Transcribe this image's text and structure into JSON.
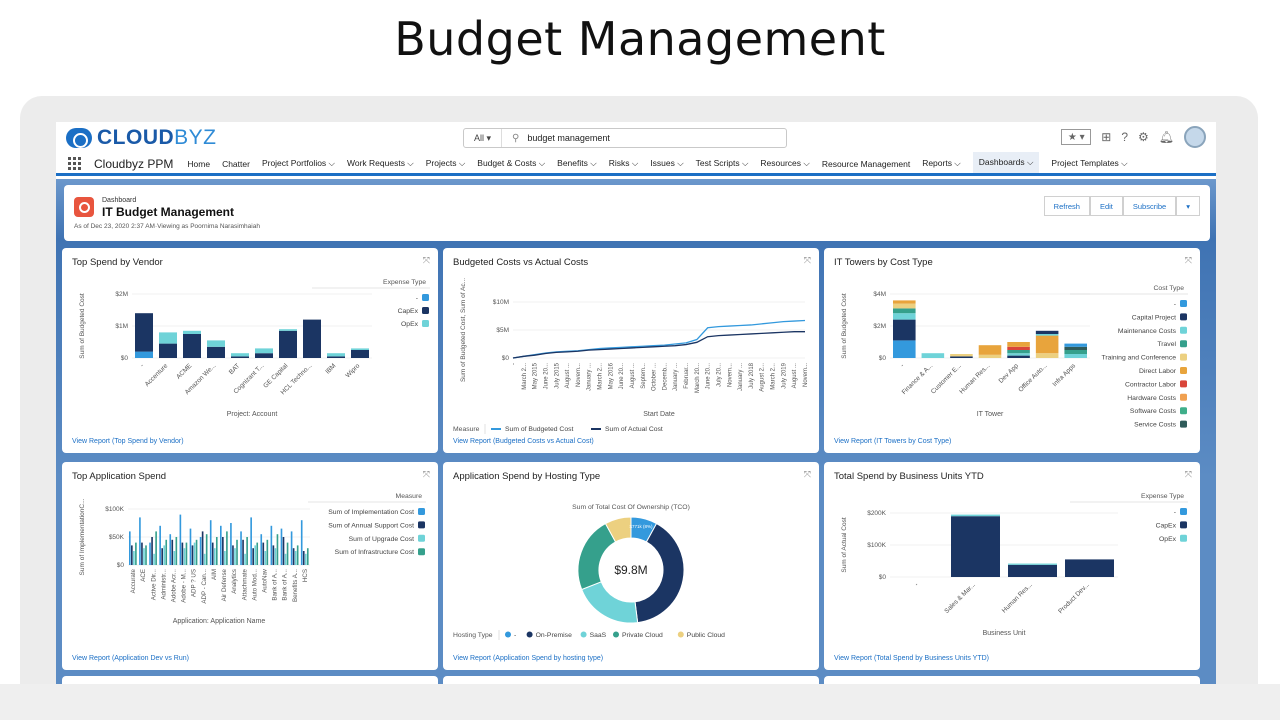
{
  "page": {
    "title": "Budget Management"
  },
  "header": {
    "brand_left": "CLOUD",
    "brand_right": "BYZ",
    "search_scope": "All",
    "search_value": "budget management"
  },
  "nav": {
    "app_name": "Cloudbyz PPM",
    "items": [
      "Home",
      "Chatter",
      "Project Portfolios ⌵",
      "Work Requests ⌵",
      "Projects ⌵",
      "Budget & Costs ⌵",
      "Benefits ⌵",
      "Risks ⌵",
      "Issues ⌵",
      "Test Scripts ⌵",
      "Resources ⌵",
      "Resource Management",
      "Reports ⌵",
      "Dashboards ⌵",
      "Project Templates ⌵"
    ],
    "active": "Dashboards ⌵"
  },
  "dashboard": {
    "type_label": "Dashboard",
    "title": "IT Budget Management",
    "as_of": "As of Dec 23, 2020 2:37 AM·Viewing as Poornima Narasimhaiah",
    "buttons": {
      "refresh": "Refresh",
      "edit": "Edit",
      "subscribe": "Subscribe"
    }
  },
  "colors": {
    "dash": "#3399dd",
    "capex": "#1b3563",
    "opex": "#6fd3d8",
    "accent": "#1b6fc5",
    "pc_teal": "#35a08c",
    "public_cloud": "#ecd080"
  },
  "panels": {
    "p1": {
      "title": "Top Spend by Vendor",
      "link": "View Report (Top Spend by Vendor)",
      "chart_data": {
        "type": "bar",
        "stacked": true,
        "ylabel": "Sum of Budgeted Cost",
        "xlabel": "Project: Account",
        "yticks": [
          "$2M",
          "$1M",
          "$0"
        ],
        "ylim": [
          0,
          2
        ],
        "categories": [
          "-",
          "Accenture",
          "ACME",
          "Amazon We...",
          "BAT",
          "Cognizant T...",
          "GE Capital",
          "HCL Techno...",
          "IBM",
          "Wipro"
        ],
        "legend_title": "Expense Type",
        "series": [
          {
            "name": "-",
            "color": "#3399dd",
            "values": [
              0.2,
              0,
              0,
              0,
              0,
              0,
              0,
              0,
              0,
              0
            ]
          },
          {
            "name": "CapEx",
            "color": "#1b3563",
            "values": [
              1.2,
              0.45,
              0.75,
              0.35,
              0.05,
              0.15,
              0.85,
              1.2,
              0.05,
              0.25
            ]
          },
          {
            "name": "OpEx",
            "color": "#6fd3d8",
            "values": [
              0,
              0.35,
              0.1,
              0.2,
              0.1,
              0.15,
              0.05,
              0,
              0.1,
              0.05
            ]
          }
        ]
      }
    },
    "p2": {
      "title": "Budgeted Costs vs Actual Costs",
      "link": "View Report (Budgeted Costs vs Actual Cost)",
      "chart_data": {
        "type": "line",
        "ylabel": "Sum of Budgeted Cost, Sum of Ac...",
        "xlabel": "Start Date",
        "yticks": [
          "$10M",
          "$5M",
          "$0"
        ],
        "ylim": [
          0,
          10
        ],
        "x": [
          "-",
          "March 2...",
          "May 2015",
          "June 20...",
          "July 2015",
          "August ...",
          "Novem...",
          "January ...",
          "March 2...",
          "May 2016",
          "June 20...",
          "August ...",
          "Septem...",
          "October ...",
          "Decemb...",
          "January ...",
          "Februar...",
          "March 20...",
          "June 20...",
          "July 20...",
          "Novem...",
          "January ...",
          "July 2018",
          "August 2...",
          "March 2...",
          "July 2019",
          "August ...",
          "Novem..."
        ],
        "legend_title": "Measure",
        "series": [
          {
            "name": "Sum of Budgeted Cost",
            "color": "#3399dd",
            "values": [
              0,
              0.3,
              0.6,
              0.9,
              1.1,
              1.2,
              1.3,
              1.5,
              1.7,
              1.8,
              1.9,
              2.0,
              2.1,
              2.2,
              2.3,
              2.5,
              2.7,
              3.3,
              5.4,
              5.6,
              5.7,
              5.8,
              5.9,
              6.1,
              6.3,
              6.5,
              6.6,
              6.7
            ]
          },
          {
            "name": "Sum of Actual Cost",
            "color": "#1b3563",
            "values": [
              0,
              0.3,
              0.5,
              0.8,
              1.0,
              1.1,
              1.2,
              1.4,
              1.5,
              1.6,
              1.7,
              1.8,
              1.9,
              2.0,
              2.1,
              2.2,
              2.4,
              2.8,
              3.8,
              4.0,
              4.1,
              4.2,
              4.3,
              4.4,
              4.5,
              4.6,
              4.7,
              4.7
            ]
          }
        ]
      }
    },
    "p3": {
      "title": "IT Towers by Cost Type",
      "link": "View Report (IT Towers by Cost Type)",
      "chart_data": {
        "type": "bar",
        "stacked": true,
        "ylabel": "Sum of Budgeted Cost",
        "xlabel": "IT Tower",
        "yticks": [
          "$4M",
          "$2M",
          "$0"
        ],
        "ylim": [
          0,
          4
        ],
        "categories": [
          "-",
          "Finance & A...",
          "Customer E...",
          "Human Res...",
          "Dev App",
          "Office Auto...",
          "Infra Apps"
        ],
        "legend_title": "Cost Type",
        "legend": [
          {
            "name": "-",
            "color": "#3399dd"
          },
          {
            "name": "Capital Project",
            "color": "#1b3563"
          },
          {
            "name": "Maintenance Costs",
            "color": "#6fd3d8"
          },
          {
            "name": "Travel",
            "color": "#35a08c"
          },
          {
            "name": "Training and Conference",
            "color": "#ecd080"
          },
          {
            "name": "Direct Labor",
            "color": "#e8a43c"
          },
          {
            "name": "Contractor Labor",
            "color": "#d9453a"
          },
          {
            "name": "Hardware Costs",
            "color": "#f0a050"
          },
          {
            "name": "Software Costs",
            "color": "#3fae8a"
          },
          {
            "name": "Service Costs",
            "color": "#2f5b5a"
          }
        ],
        "stacks": [
          [
            {
              "c": "#3399dd",
              "v": 1.1
            },
            {
              "c": "#1b3563",
              "v": 1.3
            },
            {
              "c": "#6fd3d8",
              "v": 0.4
            },
            {
              "c": "#35a08c",
              "v": 0.3
            },
            {
              "c": "#ecd080",
              "v": 0.3
            },
            {
              "c": "#e8a43c",
              "v": 0.2
            }
          ],
          [
            {
              "c": "#6fd3d8",
              "v": 0.3
            }
          ],
          [
            {
              "c": "#1b3563",
              "v": 0.1
            },
            {
              "c": "#ecd080",
              "v": 0.15
            }
          ],
          [
            {
              "c": "#ecd080",
              "v": 0.2
            },
            {
              "c": "#e8a43c",
              "v": 0.6
            }
          ],
          [
            {
              "c": "#1b3563",
              "v": 0.15
            },
            {
              "c": "#6fd3d8",
              "v": 0.15
            },
            {
              "c": "#35a08c",
              "v": 0.2
            },
            {
              "c": "#d9453a",
              "v": 0.2
            },
            {
              "c": "#e8a43c",
              "v": 0.3
            }
          ],
          [
            {
              "c": "#ecd080",
              "v": 0.3
            },
            {
              "c": "#e8a43c",
              "v": 1.1
            },
            {
              "c": "#6fd3d8",
              "v": 0.1
            },
            {
              "c": "#1b3563",
              "v": 0.2
            }
          ],
          [
            {
              "c": "#6fd3d8",
              "v": 0.25
            },
            {
              "c": "#35a08c",
              "v": 0.25
            },
            {
              "c": "#2f5b5a",
              "v": 0.2
            },
            {
              "c": "#3399dd",
              "v": 0.2
            }
          ]
        ]
      }
    },
    "p4": {
      "title": "Top Application Spend",
      "link": "View Report (Application Dev vs Run)",
      "chart_data": {
        "type": "bar",
        "grouped": true,
        "ylabel": "Sum of ImplementationC...",
        "xlabel": "Application: Application Name",
        "yticks": [
          "$100K",
          "$50K",
          "$0"
        ],
        "ylim": [
          0,
          100
        ],
        "categories": [
          "Accurate",
          "ACE",
          "Active Dir...",
          "Administr...",
          "Adobe Acr...",
          "Adobe - M...",
          "ADP ? US",
          "ADP - Can...",
          "AIM",
          "Air Defense",
          "Analytics",
          "Attachmate",
          "Auto Mod...",
          "AutoNav",
          "Bank of A...",
          "Bank of A...",
          "Benefits A...",
          "HCS"
        ],
        "legend_title": "Measure",
        "series": [
          {
            "name": "Sum of Implementation Cost",
            "color": "#3399dd",
            "values": [
              60,
              85,
              40,
              70,
              55,
              90,
              65,
              50,
              80,
              70,
              75,
              60,
              85,
              55,
              70,
              65,
              60,
              80
            ]
          },
          {
            "name": "Sum of Annual Support Cost",
            "color": "#1b3563",
            "values": [
              35,
              40,
              50,
              30,
              45,
              40,
              35,
              60,
              40,
              50,
              35,
              45,
              30,
              40,
              35,
              50,
              30,
              25
            ]
          },
          {
            "name": "Sum of Upgrade Cost",
            "color": "#6fd3d8",
            "values": [
              25,
              30,
              20,
              35,
              25,
              30,
              40,
              20,
              30,
              25,
              30,
              20,
              35,
              25,
              30,
              20,
              25,
              20
            ]
          },
          {
            "name": "Sum of Infrastructure Cost",
            "color": "#35a08c",
            "values": [
              40,
              35,
              60,
              45,
              50,
              40,
              45,
              55,
              50,
              60,
              45,
              50,
              40,
              45,
              55,
              40,
              35,
              30
            ]
          }
        ]
      }
    },
    "p5": {
      "title": "Application Spend by Hosting Type",
      "link": "View Report (Application Spend by hosting type)",
      "chart_data": {
        "type": "pie",
        "donut": true,
        "title": "Sum of Total Cost Of Ownership (TCO)",
        "center_label": "$9.8M",
        "slice_label": "$771k (8%)",
        "legend_title": "Hosting Type",
        "slices": [
          {
            "name": "-",
            "value": 8,
            "color": "#3399dd"
          },
          {
            "name": "On-Premise",
            "value": 40,
            "color": "#1b3563"
          },
          {
            "name": "SaaS",
            "value": 21,
            "color": "#6fd3d8"
          },
          {
            "name": "Private Cloud",
            "value": 23,
            "color": "#35a08c"
          },
          {
            "name": "Public Cloud",
            "value": 8,
            "color": "#ecd080"
          }
        ]
      }
    },
    "p6": {
      "title": "Total Spend by Business Units YTD",
      "link": "View Report (Total Spend by Business Units YTD)",
      "chart_data": {
        "type": "bar",
        "stacked": true,
        "ylabel": "Sum of Actual Cost",
        "xlabel": "Business Unit",
        "yticks": [
          "$200K",
          "$100K",
          "$0"
        ],
        "ylim": [
          0,
          200
        ],
        "categories": [
          "-",
          "Sales & Mar...",
          "Human Res...",
          "Product Dev..."
        ],
        "legend_title": "Expense Type",
        "series": [
          {
            "name": "-",
            "color": "#3399dd",
            "values": [
              0,
              0,
              0,
              0
            ]
          },
          {
            "name": "CapEx",
            "color": "#1b3563",
            "values": [
              0,
              190,
              38,
              55
            ]
          },
          {
            "name": "OpEx",
            "color": "#6fd3d8",
            "values": [
              0,
              5,
              4,
              0
            ]
          }
        ]
      }
    }
  }
}
